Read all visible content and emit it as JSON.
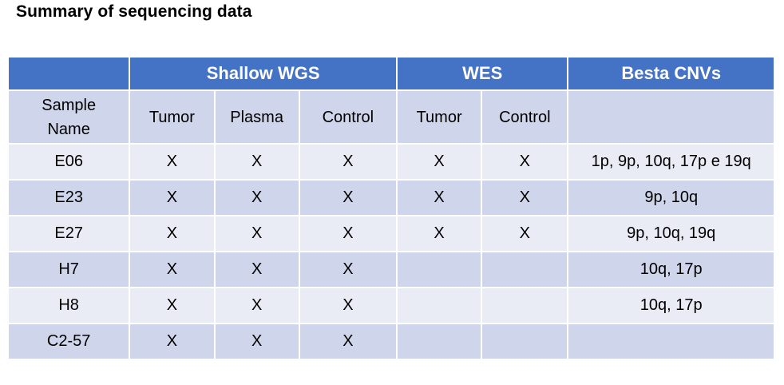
{
  "title": "Summary of sequencing data",
  "table": {
    "group_headers": [
      "",
      "Shallow WGS",
      "WES",
      "Besta CNVs"
    ],
    "sub_headers": {
      "sample_name": "Sample\nName",
      "wgs_tumor": "Tumor",
      "wgs_plasma": "Plasma",
      "wgs_control": "Control",
      "wes_tumor": "Tumor",
      "wes_control": "Control",
      "cnvs": ""
    },
    "rows": [
      {
        "sample": "E06",
        "wgs_tumor": "X",
        "wgs_plasma": "X",
        "wgs_control": "X",
        "wes_tumor": "X",
        "wes_control": "X",
        "cnvs": "1p, 9p, 10q, 17p e 19q"
      },
      {
        "sample": "E23",
        "wgs_tumor": "X",
        "wgs_plasma": "X",
        "wgs_control": "X",
        "wes_tumor": "X",
        "wes_control": "X",
        "cnvs": "9p, 10q"
      },
      {
        "sample": "E27",
        "wgs_tumor": "X",
        "wgs_plasma": "X",
        "wgs_control": "X",
        "wes_tumor": "X",
        "wes_control": "X",
        "cnvs": "9p, 10q, 19q"
      },
      {
        "sample": "H7",
        "wgs_tumor": "X",
        "wgs_plasma": "X",
        "wgs_control": "X",
        "wes_tumor": "",
        "wes_control": "",
        "cnvs": "10q, 17p"
      },
      {
        "sample": "H8",
        "wgs_tumor": "X",
        "wgs_plasma": "X",
        "wgs_control": "X",
        "wes_tumor": "",
        "wes_control": "",
        "cnvs": "10q, 17p"
      },
      {
        "sample": "C2-57",
        "wgs_tumor": "X",
        "wgs_plasma": "X",
        "wgs_control": "X",
        "wes_tumor": "",
        "wes_control": "",
        "cnvs": ""
      }
    ]
  },
  "colors": {
    "header_blue": "#4472c4",
    "band_dark": "#cfd5ea",
    "band_light": "#e9ebf5"
  }
}
